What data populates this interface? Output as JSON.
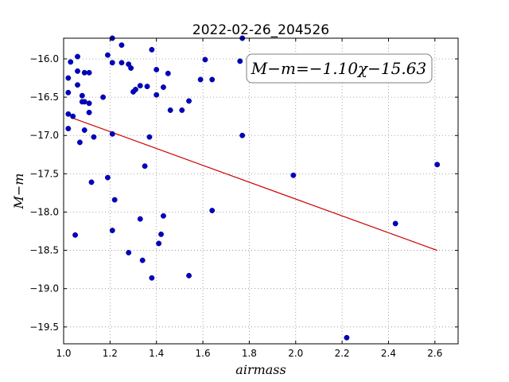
{
  "chart_data": {
    "type": "scatter",
    "title": "2022-02-26_204526",
    "xlabel": "airmass",
    "ylabel": "M−m",
    "xlim": [
      1.0,
      2.7
    ],
    "ylim": [
      -19.72,
      -15.73
    ],
    "y_inverted": true,
    "grid": true,
    "x_ticks": [
      1.0,
      1.2,
      1.4,
      1.6,
      1.8,
      2.0,
      2.2,
      2.4,
      2.6
    ],
    "x_tick_labels": [
      "1.0",
      "1.2",
      "1.4",
      "1.6",
      "1.8",
      "2.0",
      "2.2",
      "2.4",
      "2.6"
    ],
    "y_ticks": [
      -16.0,
      -16.5,
      -17.0,
      -17.5,
      -18.0,
      -18.5,
      -19.0,
      -19.5
    ],
    "y_tick_labels": [
      "−16.0",
      "−16.5",
      "−17.0",
      "−17.5",
      "−18.0",
      "−18.5",
      "−19.0",
      "−19.5"
    ],
    "annotation": "M−m=−1.10χ−15.63",
    "marker_color": "#0000c0",
    "fit_color": "#cc0000",
    "fit": {
      "slope": -1.1,
      "intercept": -15.63,
      "x_range": [
        1.03,
        2.61
      ]
    },
    "points": [
      {
        "x": 1.21,
        "y": -15.73
      },
      {
        "x": 1.77,
        "y": -15.73
      },
      {
        "x": 1.25,
        "y": -15.82
      },
      {
        "x": 1.38,
        "y": -15.88
      },
      {
        "x": 1.06,
        "y": -15.97
      },
      {
        "x": 1.19,
        "y": -15.95
      },
      {
        "x": 1.03,
        "y": -16.04
      },
      {
        "x": 1.21,
        "y": -16.05
      },
      {
        "x": 1.25,
        "y": -16.05
      },
      {
        "x": 1.28,
        "y": -16.07
      },
      {
        "x": 1.61,
        "y": -16.01
      },
      {
        "x": 1.76,
        "y": -16.03
      },
      {
        "x": 1.29,
        "y": -16.12
      },
      {
        "x": 1.4,
        "y": -16.14
      },
      {
        "x": 1.06,
        "y": -16.16
      },
      {
        "x": 1.09,
        "y": -16.18
      },
      {
        "x": 1.11,
        "y": -16.18
      },
      {
        "x": 1.45,
        "y": -16.19
      },
      {
        "x": 1.02,
        "y": -16.25
      },
      {
        "x": 1.59,
        "y": -16.27
      },
      {
        "x": 1.64,
        "y": -16.27
      },
      {
        "x": 1.06,
        "y": -16.34
      },
      {
        "x": 1.33,
        "y": -16.35
      },
      {
        "x": 1.36,
        "y": -16.36
      },
      {
        "x": 1.43,
        "y": -16.37
      },
      {
        "x": 1.31,
        "y": -16.4
      },
      {
        "x": 1.3,
        "y": -16.43
      },
      {
        "x": 1.02,
        "y": -16.44
      },
      {
        "x": 1.4,
        "y": -16.47
      },
      {
        "x": 1.08,
        "y": -16.48
      },
      {
        "x": 1.17,
        "y": -16.5
      },
      {
        "x": 1.54,
        "y": -16.55
      },
      {
        "x": 1.09,
        "y": -16.56
      },
      {
        "x": 1.08,
        "y": -16.56
      },
      {
        "x": 1.11,
        "y": -16.58
      },
      {
        "x": 1.46,
        "y": -16.67
      },
      {
        "x": 1.51,
        "y": -16.67
      },
      {
        "x": 1.11,
        "y": -16.7
      },
      {
        "x": 1.02,
        "y": -16.72
      },
      {
        "x": 1.04,
        "y": -16.75
      },
      {
        "x": 1.02,
        "y": -16.91
      },
      {
        "x": 1.09,
        "y": -16.93
      },
      {
        "x": 1.21,
        "y": -16.98
      },
      {
        "x": 1.13,
        "y": -17.02
      },
      {
        "x": 1.37,
        "y": -17.02
      },
      {
        "x": 1.77,
        "y": -17.0
      },
      {
        "x": 1.07,
        "y": -17.09
      },
      {
        "x": 1.35,
        "y": -17.4
      },
      {
        "x": 2.61,
        "y": -17.38
      },
      {
        "x": 1.99,
        "y": -17.52
      },
      {
        "x": 1.19,
        "y": -17.55
      },
      {
        "x": 1.12,
        "y": -17.61
      },
      {
        "x": 1.22,
        "y": -17.84
      },
      {
        "x": 1.64,
        "y": -17.98
      },
      {
        "x": 1.43,
        "y": -18.05
      },
      {
        "x": 1.33,
        "y": -18.09
      },
      {
        "x": 2.43,
        "y": -18.15
      },
      {
        "x": 1.21,
        "y": -18.24
      },
      {
        "x": 1.05,
        "y": -18.3
      },
      {
        "x": 1.42,
        "y": -18.29
      },
      {
        "x": 1.41,
        "y": -18.41
      },
      {
        "x": 1.28,
        "y": -18.53
      },
      {
        "x": 1.34,
        "y": -18.63
      },
      {
        "x": 1.54,
        "y": -18.83
      },
      {
        "x": 1.38,
        "y": -18.86
      },
      {
        "x": 2.22,
        "y": -19.64
      }
    ]
  }
}
